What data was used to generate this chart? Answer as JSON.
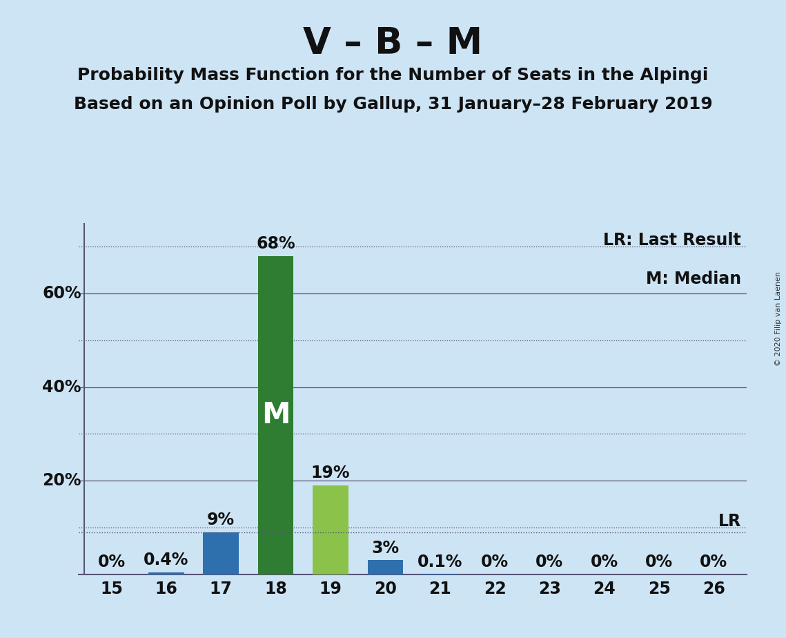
{
  "title": "V – B – M",
  "subtitle1": "Probability Mass Function for the Number of Seats in the Alpingi",
  "subtitle2": "Based on an Opinion Poll by Gallup, 31 January–28 February 2019",
  "copyright": "© 2020 Filip van Laenen",
  "seats": [
    15,
    16,
    17,
    18,
    19,
    20,
    21,
    22,
    23,
    24,
    25,
    26
  ],
  "probabilities": [
    0.0,
    0.4,
    9.0,
    68.0,
    19.0,
    3.0,
    0.1,
    0.0,
    0.0,
    0.0,
    0.0,
    0.0
  ],
  "bar_colors": [
    "#2e6fad",
    "#2e6fad",
    "#2e6fad",
    "#2e7d32",
    "#8bc34a",
    "#2e6fad",
    "#2e6fad",
    "#2e6fad",
    "#2e6fad",
    "#2e6fad",
    "#2e6fad",
    "#2e6fad"
  ],
  "median_bar_index": 3,
  "median_label": "M",
  "lr_value": 9.0,
  "lr_label": "LR",
  "legend_lr": "LR: Last Result",
  "legend_m": "M: Median",
  "background_color": "#cde4f5",
  "ylim": [
    0,
    75
  ],
  "major_gridlines": [
    20,
    40,
    60
  ],
  "dotted_gridlines": [
    10,
    30,
    50,
    70
  ],
  "visible_yticks": [
    20,
    40,
    60
  ],
  "label_fontsize": 17,
  "tick_fontsize": 17,
  "title_fontsize": 38,
  "subtitle_fontsize": 18,
  "bar_width": 0.65
}
